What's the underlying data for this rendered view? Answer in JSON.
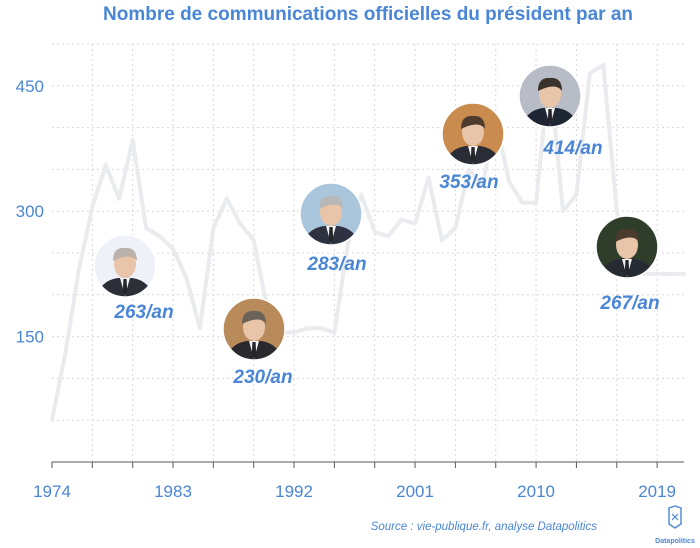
{
  "chart_data": {
    "type": "line",
    "title": "Nombre de communications officielles du président par an",
    "xlabel": "",
    "ylabel": "",
    "xlim": [
      1974,
      2021
    ],
    "ylim": [
      0,
      500
    ],
    "yticks": [
      150,
      300,
      450
    ],
    "xticks": [
      1974,
      1983,
      1992,
      2001,
      2010,
      2019
    ],
    "grid": true,
    "series": [
      {
        "color": "#e9ebee",
        "x": [
          1974,
          1975,
          1976,
          1977,
          1978,
          1979,
          1980,
          1981,
          1982,
          1983,
          1984,
          1985,
          1986,
          1987,
          1988,
          1989,
          1990,
          1991,
          1992,
          1993,
          1994,
          1995,
          1996,
          1997,
          1998,
          1999,
          2000,
          2001,
          2002,
          2003,
          2004,
          2005,
          2006,
          2007,
          2008,
          2009,
          2010,
          2011,
          2012,
          2013,
          2014,
          2015,
          2016,
          2017,
          2018,
          2019,
          2020,
          2021
        ],
        "values": [
          50,
          130,
          230,
          305,
          355,
          315,
          385,
          280,
          270,
          255,
          220,
          160,
          280,
          315,
          285,
          265,
          185,
          155,
          155,
          160,
          160,
          155,
          260,
          320,
          275,
          270,
          290,
          285,
          340,
          265,
          280,
          350,
          330,
          410,
          335,
          310,
          310,
          470,
          300,
          320,
          465,
          475,
          300,
          235,
          225,
          225,
          225,
          225
        ]
      }
    ],
    "annotations": [
      {
        "label": "263/an",
        "portrait": "president-portrait-giscard",
        "color": "#4a86d6"
      },
      {
        "label": "230/an",
        "portrait": "president-portrait-mitterrand",
        "color": "#4a86d6"
      },
      {
        "label": "283/an",
        "portrait": "president-portrait-chirac",
        "color": "#4a86d6"
      },
      {
        "label": "353/an",
        "portrait": "president-portrait-sarkozy",
        "color": "#4a86d6"
      },
      {
        "label": "414/an",
        "portrait": "president-portrait-hollande",
        "color": "#4a86d6"
      },
      {
        "label": "267/an",
        "portrait": "president-portrait-macron",
        "color": "#4a86d6"
      }
    ],
    "source": "Source : vie-publique.fr, analyse Datapolitics"
  },
  "logo": {
    "text": "Datapolitics"
  },
  "colors": {
    "accent": "#4a86d6",
    "line": "#e9ebee",
    "grid": "#d8d8d8"
  }
}
